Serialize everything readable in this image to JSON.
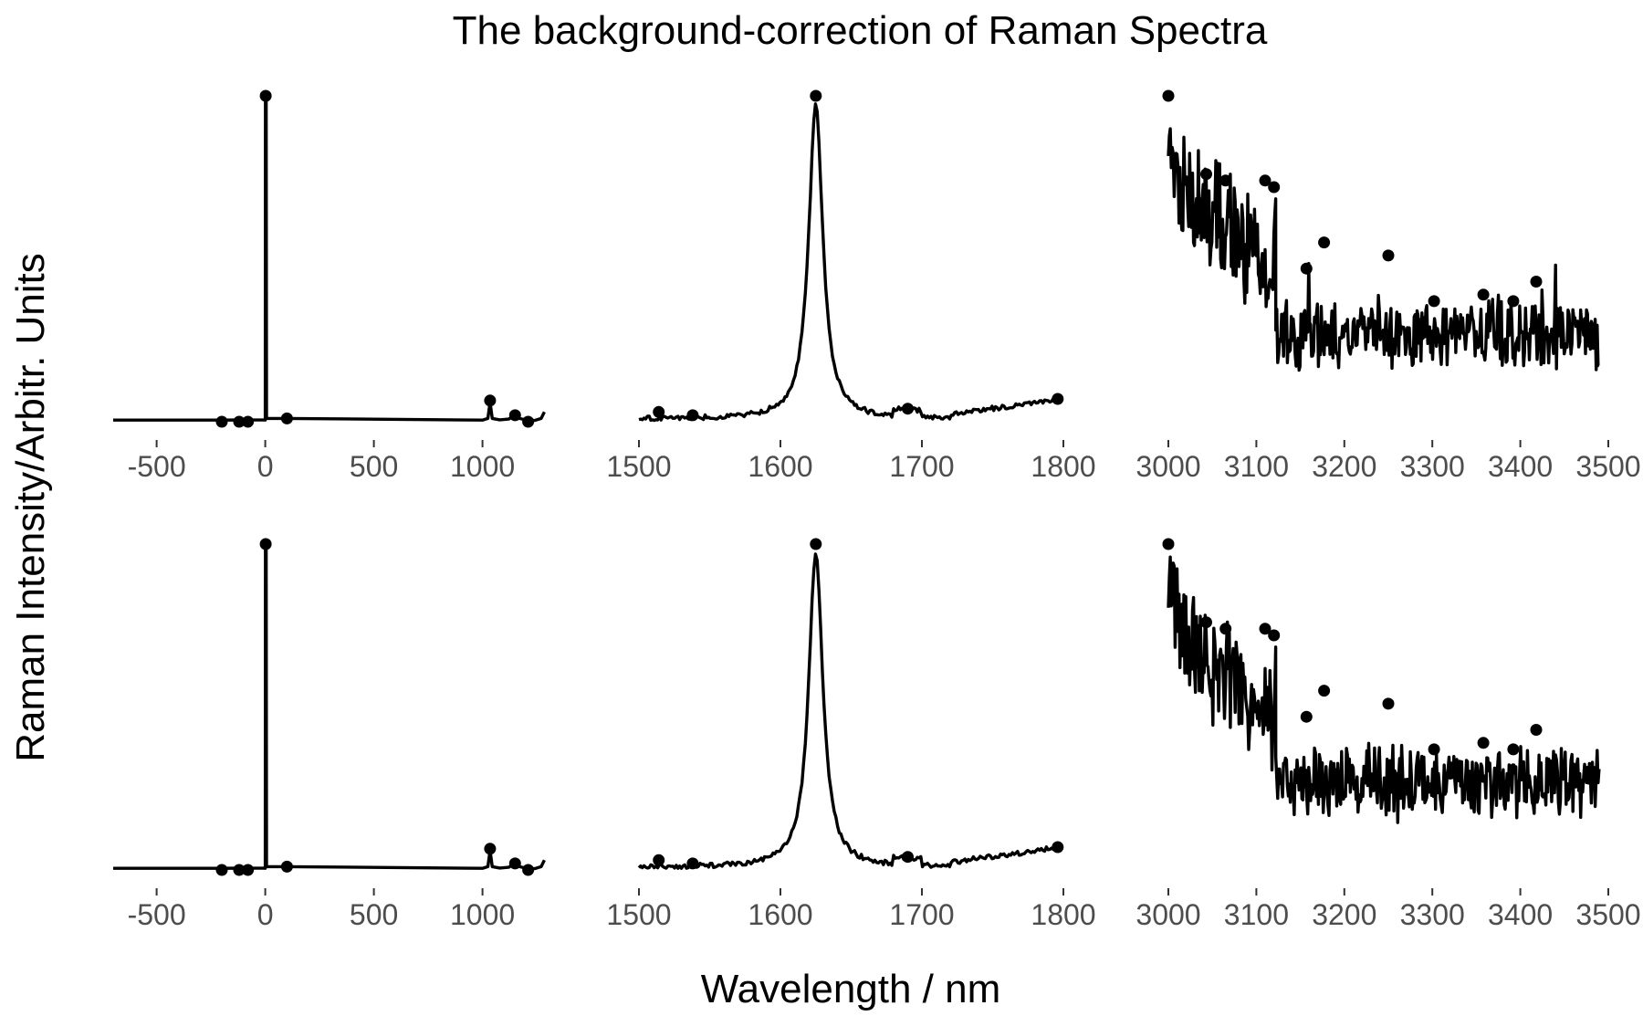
{
  "figure": {
    "title": "The background-correction of Raman Spectra",
    "xlabel": "Wavelength / nm",
    "ylabel": "Raman Intensity/Arbitr. Units"
  },
  "chart_data": [
    {
      "type": "line",
      "row": 1,
      "col": 1,
      "xlim": [
        -700,
        1300
      ],
      "ylim": [
        0,
        1
      ],
      "x_ticks": [
        -500,
        0,
        500,
        1000
      ],
      "x_tick_labels": [
        "-500",
        "0",
        "500",
        "1000"
      ],
      "grid": false,
      "legend": "none",
      "line_color": "#000000",
      "line": [
        [
          -700,
          0.005
        ],
        [
          -200,
          0.005
        ],
        [
          -5,
          0.006
        ],
        [
          0,
          0.005
        ],
        [
          1,
          1.0
        ],
        [
          4,
          1.0
        ],
        [
          6,
          0.01
        ],
        [
          100,
          0.01
        ],
        [
          1000,
          0.005
        ],
        [
          1025,
          0.01
        ],
        [
          1035,
          0.06
        ],
        [
          1045,
          0.01
        ],
        [
          1080,
          0.006
        ],
        [
          1120,
          0.008
        ],
        [
          1150,
          0.02
        ],
        [
          1170,
          0.01
        ],
        [
          1210,
          0.004
        ],
        [
          1240,
          0.004
        ],
        [
          1270,
          0.01
        ],
        [
          1285,
          0.03
        ]
      ],
      "peaks": [
        [
          -200,
          0.0
        ],
        [
          -120,
          0.0
        ],
        [
          -80,
          0.0
        ],
        [
          2,
          1.0
        ],
        [
          100,
          0.01
        ],
        [
          1035,
          0.065
        ],
        [
          1150,
          0.02
        ],
        [
          1210,
          0.0
        ]
      ]
    },
    {
      "type": "line",
      "row": 1,
      "col": 2,
      "xlim": [
        1500,
        1800
      ],
      "ylim": [
        0,
        1
      ],
      "x_ticks": [
        1500,
        1600,
        1700,
        1800
      ],
      "x_tick_labels": [
        "1500",
        "1600",
        "1700",
        "1800"
      ],
      "grid": false,
      "legend": "none",
      "line_color": "#000000",
      "center": 1625,
      "width": 6,
      "amplitude": 0.97,
      "line_range": [
        1500,
        1796
      ],
      "peaks": [
        [
          1514,
          0.03
        ],
        [
          1538,
          0.02
        ],
        [
          1690,
          0.04
        ],
        [
          1796,
          0.07
        ],
        [
          1625,
          1.0
        ]
      ]
    },
    {
      "type": "line",
      "row": 1,
      "col": 3,
      "xlim": [
        3000,
        3500
      ],
      "ylim": [
        0,
        1
      ],
      "x_ticks": [
        3000,
        3100,
        3200,
        3300,
        3400,
        3500
      ],
      "x_tick_labels": [
        "3000",
        "3100",
        "3200",
        "3300",
        "3400",
        "3500"
      ],
      "grid": false,
      "legend": "none",
      "line_color": "#000000",
      "line_range": [
        3000,
        3490
      ],
      "step_at": 3122,
      "high_level": 0.72,
      "low_level": 0.27,
      "noise": 0.1,
      "peaks": [
        [
          3000,
          1.0
        ],
        [
          3043,
          0.76
        ],
        [
          3065,
          0.74
        ],
        [
          3110,
          0.74
        ],
        [
          3120,
          0.72
        ],
        [
          3157,
          0.47
        ],
        [
          3177,
          0.55
        ],
        [
          3250,
          0.51
        ],
        [
          3358,
          0.39
        ],
        [
          3392,
          0.37
        ],
        [
          3418,
          0.43
        ],
        [
          3302,
          0.37
        ]
      ]
    },
    {
      "type": "line",
      "row": 2,
      "col": 1,
      "xlim": [
        -700,
        1300
      ],
      "ylim": [
        0,
        1
      ],
      "x_ticks": [
        -500,
        0,
        500,
        1000
      ],
      "x_tick_labels": [
        "-500",
        "0",
        "500",
        "1000"
      ],
      "grid": false,
      "legend": "none",
      "line_color": "#000000",
      "line": [
        [
          -700,
          0.005
        ],
        [
          -200,
          0.005
        ],
        [
          -5,
          0.006
        ],
        [
          0,
          0.005
        ],
        [
          1,
          1.0
        ],
        [
          4,
          1.0
        ],
        [
          6,
          0.01
        ],
        [
          100,
          0.01
        ],
        [
          1000,
          0.005
        ],
        [
          1025,
          0.01
        ],
        [
          1035,
          0.06
        ],
        [
          1045,
          0.01
        ],
        [
          1080,
          0.006
        ],
        [
          1120,
          0.008
        ],
        [
          1150,
          0.02
        ],
        [
          1170,
          0.01
        ],
        [
          1210,
          0.004
        ],
        [
          1240,
          0.004
        ],
        [
          1270,
          0.01
        ],
        [
          1285,
          0.03
        ]
      ],
      "peaks": [
        [
          -200,
          0.0
        ],
        [
          -120,
          0.0
        ],
        [
          -80,
          0.0
        ],
        [
          2,
          1.0
        ],
        [
          100,
          0.01
        ],
        [
          1035,
          0.065
        ],
        [
          1150,
          0.02
        ],
        [
          1210,
          0.0
        ]
      ]
    },
    {
      "type": "line",
      "row": 2,
      "col": 2,
      "xlim": [
        1500,
        1800
      ],
      "ylim": [
        0,
        1
      ],
      "x_ticks": [
        1500,
        1600,
        1700,
        1800
      ],
      "x_tick_labels": [
        "1500",
        "1600",
        "1700",
        "1800"
      ],
      "grid": false,
      "legend": "none",
      "line_color": "#000000",
      "center": 1625,
      "width": 6,
      "amplitude": 0.97,
      "line_range": [
        1500,
        1796
      ],
      "peaks": [
        [
          1514,
          0.03
        ],
        [
          1538,
          0.02
        ],
        [
          1690,
          0.04
        ],
        [
          1796,
          0.07
        ],
        [
          1625,
          1.0
        ]
      ]
    },
    {
      "type": "line",
      "row": 2,
      "col": 3,
      "xlim": [
        3000,
        3500
      ],
      "ylim": [
        0,
        1
      ],
      "x_ticks": [
        3000,
        3100,
        3200,
        3300,
        3400,
        3500
      ],
      "x_tick_labels": [
        "3000",
        "3100",
        "3200",
        "3300",
        "3400",
        "3500"
      ],
      "grid": false,
      "legend": "none",
      "line_color": "#000000",
      "line_range": [
        3000,
        3490
      ],
      "step_at": 3122,
      "high_level": 0.72,
      "low_level": 0.27,
      "noise": 0.1,
      "peaks": [
        [
          3000,
          1.0
        ],
        [
          3043,
          0.76
        ],
        [
          3065,
          0.74
        ],
        [
          3110,
          0.74
        ],
        [
          3120,
          0.72
        ],
        [
          3157,
          0.47
        ],
        [
          3177,
          0.55
        ],
        [
          3250,
          0.51
        ],
        [
          3358,
          0.39
        ],
        [
          3392,
          0.37
        ],
        [
          3418,
          0.43
        ],
        [
          3302,
          0.37
        ]
      ]
    }
  ]
}
